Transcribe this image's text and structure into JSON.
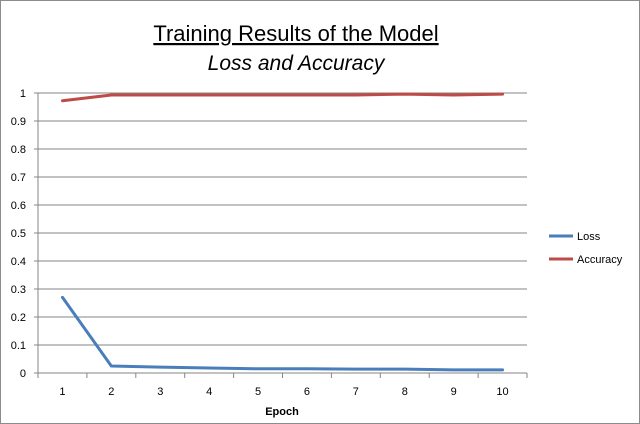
{
  "chart_data": {
    "type": "line",
    "title": "Training Results of the Model",
    "subtitle": "Loss and Accuracy",
    "xlabel": "Epoch",
    "ylabel": "",
    "x": [
      1,
      2,
      3,
      4,
      5,
      6,
      7,
      8,
      9,
      10
    ],
    "ylim": [
      0,
      1
    ],
    "yticks": [
      "0",
      "0.1",
      "0.2",
      "0.3",
      "0.4",
      "0.5",
      "0.6",
      "0.7",
      "0.8",
      "0.9",
      "1"
    ],
    "grid": "horizontal",
    "legend_position": "right",
    "series": [
      {
        "name": "Loss",
        "color": "#4a7ebb",
        "values": [
          0.27,
          0.025,
          0.021,
          0.018,
          0.015,
          0.015,
          0.014,
          0.014,
          0.011,
          0.011
        ]
      },
      {
        "name": "Accuracy",
        "color": "#be4b48",
        "values": [
          0.972,
          0.993,
          0.993,
          0.993,
          0.993,
          0.993,
          0.993,
          0.996,
          0.993,
          0.996
        ]
      }
    ]
  }
}
